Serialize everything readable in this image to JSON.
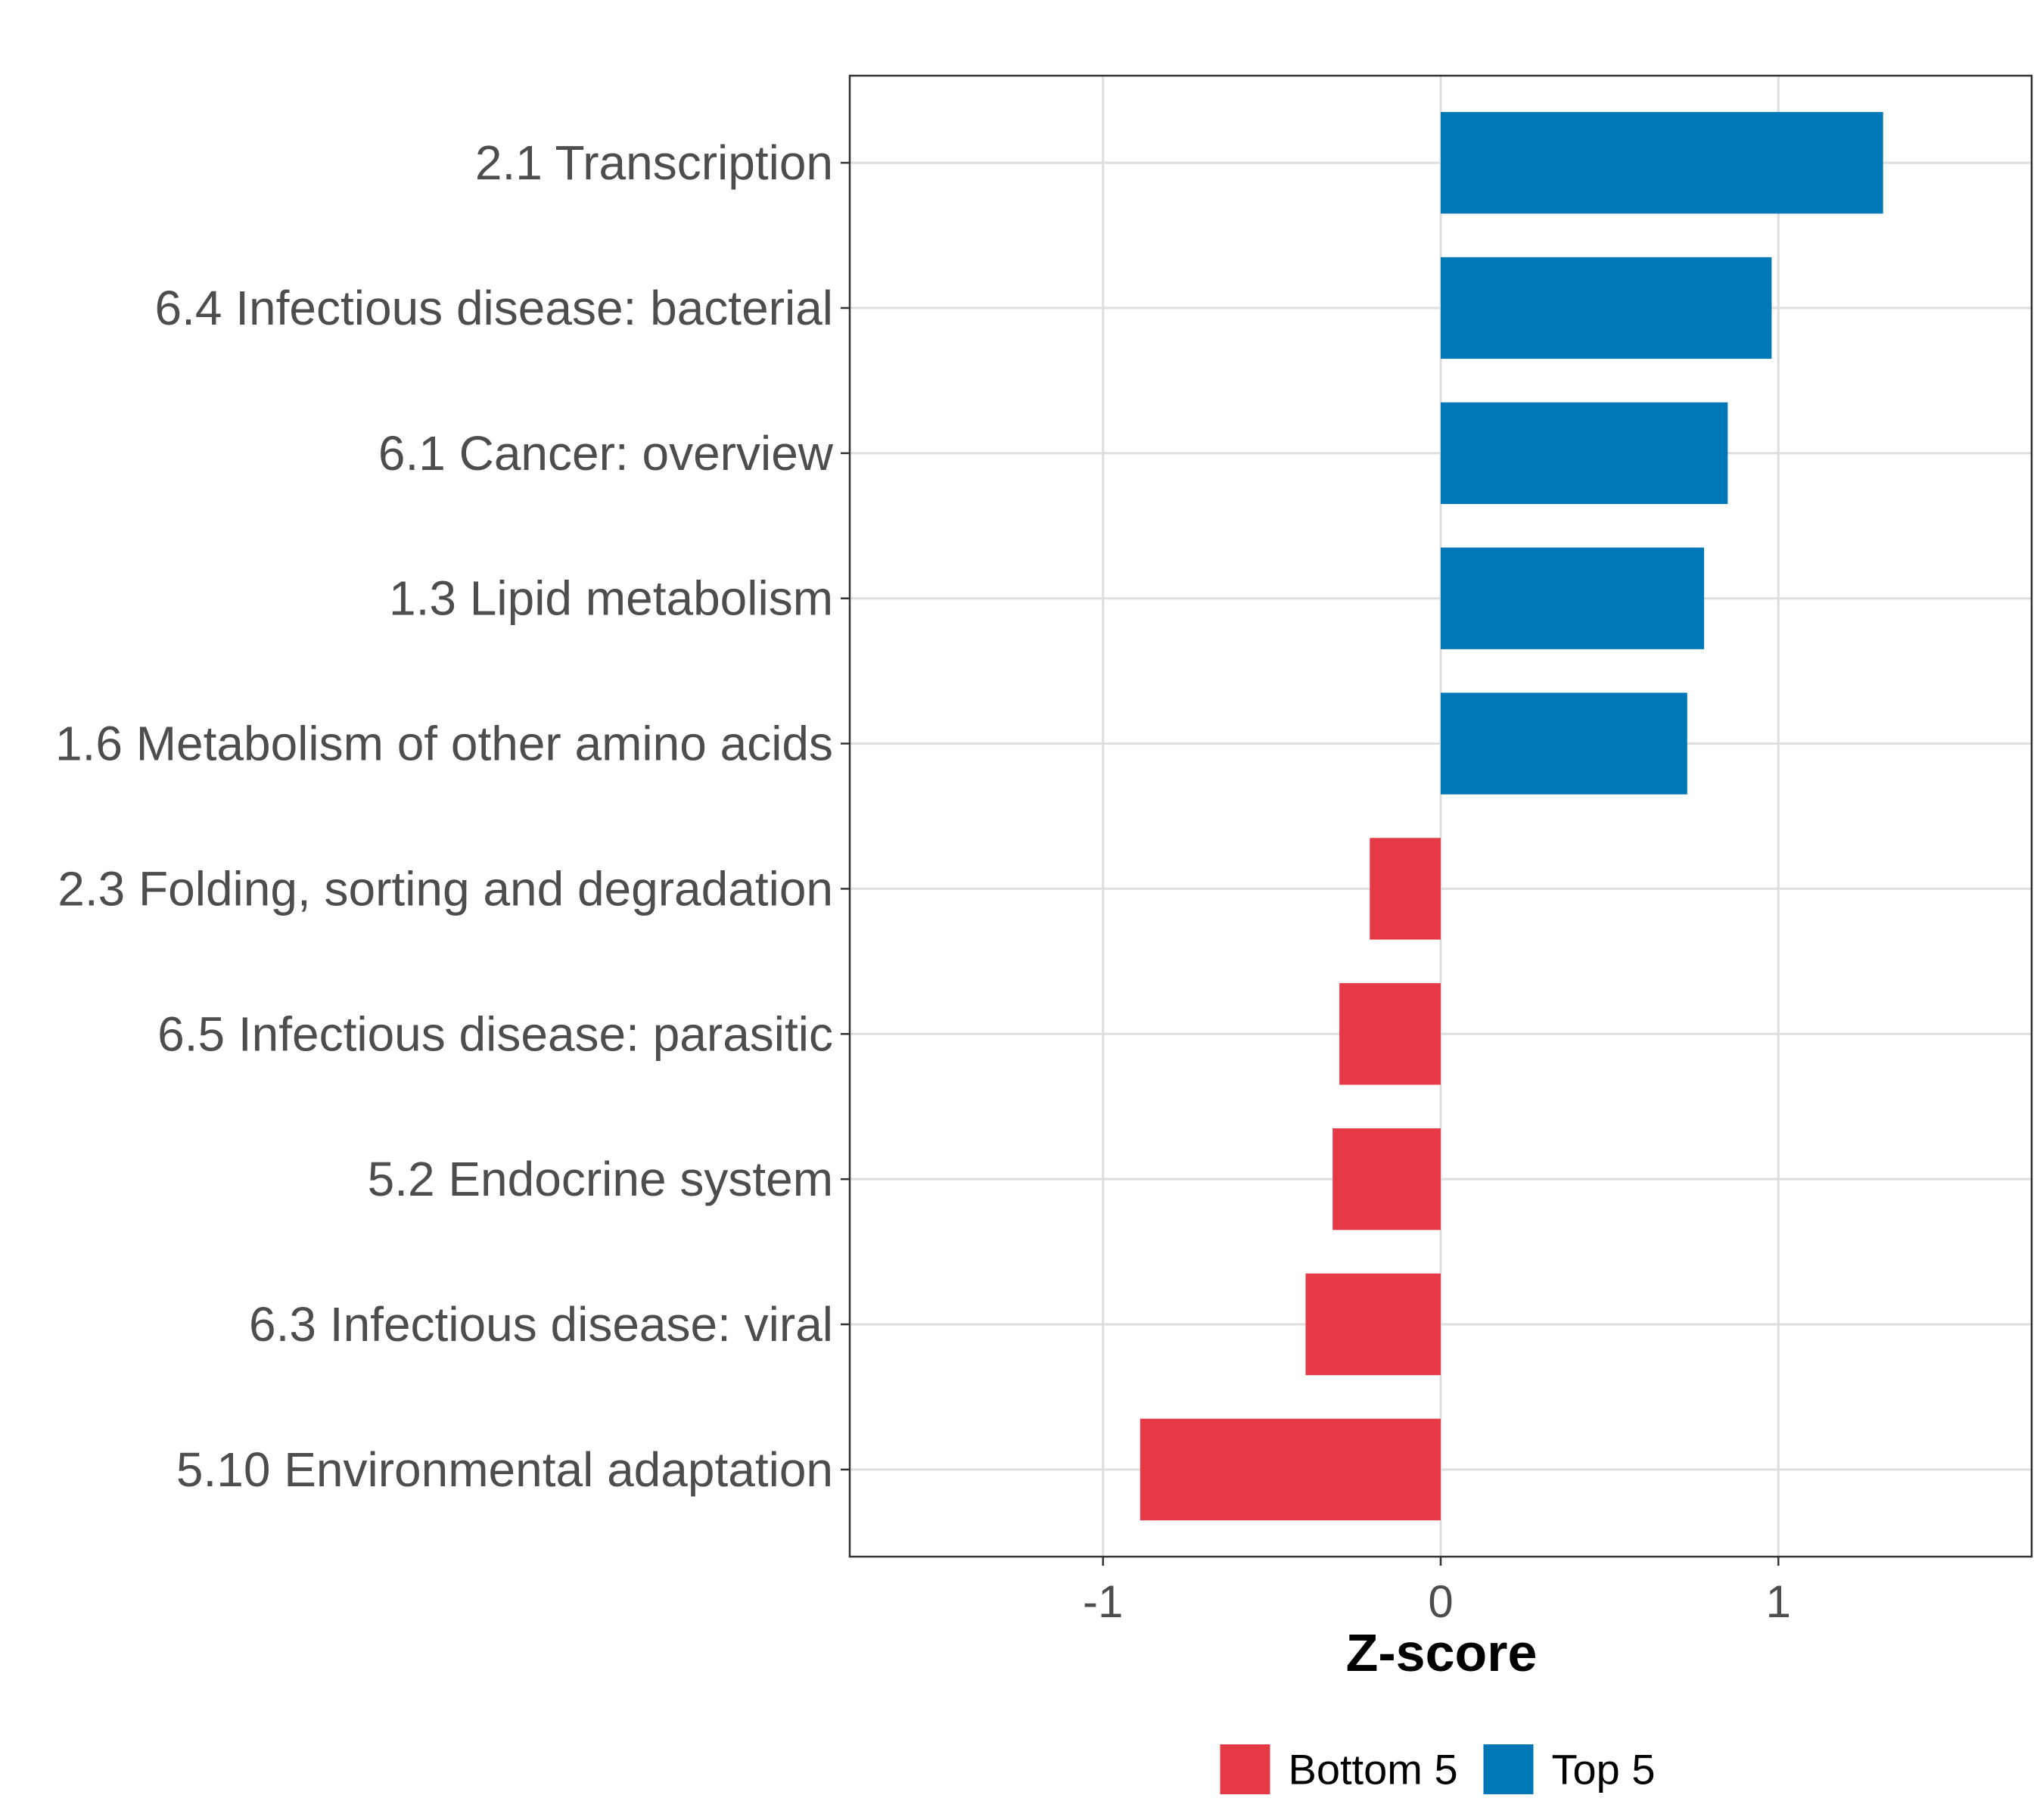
{
  "chart_data": {
    "type": "bar",
    "orientation": "horizontal",
    "title": "",
    "xlabel": "Z-score",
    "ylabel": "",
    "xlim": [
      -1.75,
      1.75
    ],
    "xticks": [
      -1,
      0,
      1
    ],
    "xtick_labels": [
      "-1",
      "0",
      "1"
    ],
    "grid": true,
    "categories": [
      "2.1 Transcription",
      "6.4 Infectious disease: bacterial",
      "6.1 Cancer: overview",
      "1.3 Lipid metabolism",
      "1.6 Metabolism of other amino acids",
      "2.3 Folding, sorting and degradation",
      "6.5 Infectious disease: parasitic",
      "5.2 Endocrine system",
      "6.3 Infectious disease: viral",
      "5.10 Environmental adaptation"
    ],
    "values": [
      1.31,
      0.98,
      0.85,
      0.78,
      0.73,
      -0.21,
      -0.3,
      -0.32,
      -0.4,
      -0.89
    ],
    "groups": [
      "Top 5",
      "Top 5",
      "Top 5",
      "Top 5",
      "Top 5",
      "Bottom 5",
      "Bottom 5",
      "Bottom 5",
      "Bottom 5",
      "Bottom 5"
    ],
    "legend": {
      "placement": "bottom",
      "entries": [
        {
          "label": "Bottom 5",
          "color": "#E63946"
        },
        {
          "label": "Top 5",
          "color": "#0077B6"
        }
      ]
    },
    "colors": {
      "Top 5": "#0077B6",
      "Bottom 5": "#E63946"
    }
  }
}
